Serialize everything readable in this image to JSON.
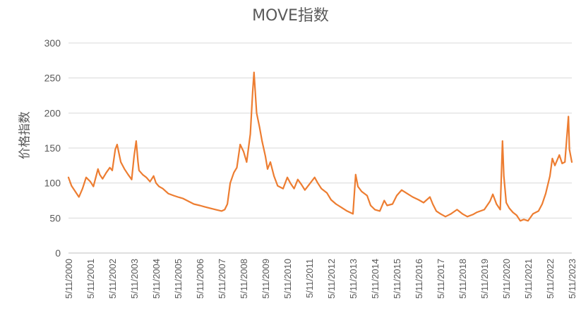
{
  "chart_data": {
    "type": "line",
    "title": "MOVE指数",
    "xlabel": "",
    "ylabel": "价格指数",
    "ylim": [
      0,
      300
    ],
    "yticks": [
      "0",
      "50",
      "100",
      "150",
      "200",
      "250",
      "300"
    ],
    "xticks": [
      "5/11/2000",
      "5/11/2001",
      "5/11/2002",
      "5/11/2003",
      "5/11/2004",
      "5/11/2005",
      "5/11/2006",
      "5/11/2007",
      "5/11/2008",
      "5/11/2009",
      "5/11/2010",
      "5/11/2011",
      "5/11/2012",
      "5/11/2013",
      "5/11/2014",
      "5/11/2015",
      "5/11/2016",
      "5/11/2017",
      "5/11/2018",
      "5/11/2019",
      "5/11/2020",
      "5/11/2021",
      "5/11/2022",
      "5/11/2023"
    ],
    "grid": true,
    "legend": "none",
    "line_color": "#ED7D31",
    "series": [
      {
        "name": "",
        "x": [
          "2000-05-11",
          "2000-07-01",
          "2000-09-01",
          "2000-11-01",
          "2001-01-01",
          "2001-03-01",
          "2001-05-11",
          "2001-07-01",
          "2001-09-15",
          "2001-10-15",
          "2001-12-01",
          "2002-02-01",
          "2002-04-01",
          "2002-05-11",
          "2002-07-01",
          "2002-08-01",
          "2002-10-01",
          "2002-12-01",
          "2003-02-01",
          "2003-04-01",
          "2003-05-11",
          "2003-06-15",
          "2003-07-15",
          "2003-08-01",
          "2003-10-01",
          "2003-12-01",
          "2004-02-01",
          "2004-04-01",
          "2004-05-11",
          "2004-07-01",
          "2004-09-01",
          "2004-12-01",
          "2005-03-01",
          "2005-05-11",
          "2005-08-01",
          "2005-11-01",
          "2006-02-01",
          "2006-05-11",
          "2006-08-01",
          "2006-11-01",
          "2007-02-01",
          "2007-05-11",
          "2007-07-01",
          "2007-08-15",
          "2007-10-01",
          "2007-12-01",
          "2008-01-20",
          "2008-03-15",
          "2008-05-11",
          "2008-07-01",
          "2008-09-01",
          "2008-10-10",
          "2008-11-01",
          "2008-12-15",
          "2009-02-01",
          "2009-03-15",
          "2009-05-11",
          "2009-06-15",
          "2009-08-01",
          "2009-10-01",
          "2009-12-01",
          "2010-03-01",
          "2010-05-11",
          "2010-07-01",
          "2010-09-01",
          "2010-11-01",
          "2011-01-01",
          "2011-03-01",
          "2011-05-11",
          "2011-08-10",
          "2011-10-01",
          "2011-12-01",
          "2012-03-01",
          "2012-05-11",
          "2012-08-01",
          "2012-11-01",
          "2013-02-01",
          "2013-05-11",
          "2013-06-25",
          "2013-08-01",
          "2013-10-01",
          "2014-01-01",
          "2014-03-01",
          "2014-05-11",
          "2014-08-01",
          "2014-10-15",
          "2014-12-01",
          "2015-03-01",
          "2015-05-11",
          "2015-08-01",
          "2015-11-01",
          "2016-02-01",
          "2016-05-11",
          "2016-08-01",
          "2016-11-15",
          "2017-01-01",
          "2017-03-01",
          "2017-05-11",
          "2017-08-01",
          "2017-11-01",
          "2018-02-10",
          "2018-05-11",
          "2018-08-01",
          "2018-11-01",
          "2019-01-01",
          "2019-05-11",
          "2019-08-15",
          "2019-10-01",
          "2019-12-01",
          "2020-02-01",
          "2020-03-10",
          "2020-04-01",
          "2020-05-11",
          "2020-07-01",
          "2020-09-01",
          "2020-11-01",
          "2021-01-01",
          "2021-03-01",
          "2021-05-11",
          "2021-08-01",
          "2021-11-01",
          "2022-01-01",
          "2022-03-01",
          "2022-05-11",
          "2022-06-20",
          "2022-08-01",
          "2022-10-15",
          "2022-12-01",
          "2023-01-15",
          "2023-03-15",
          "2023-04-01",
          "2023-05-11"
        ],
        "values": [
          108,
          96,
          88,
          80,
          92,
          108,
          102,
          95,
          120,
          112,
          106,
          115,
          122,
          118,
          148,
          155,
          130,
          120,
          112,
          105,
          138,
          160,
          130,
          118,
          112,
          108,
          102,
          110,
          100,
          95,
          92,
          85,
          82,
          80,
          78,
          74,
          70,
          68,
          66,
          64,
          62,
          60,
          62,
          70,
          100,
          115,
          122,
          155,
          145,
          130,
          170,
          230,
          258,
          200,
          180,
          160,
          138,
          120,
          130,
          110,
          96,
          92,
          108,
          100,
          92,
          105,
          98,
          90,
          98,
          108,
          100,
          92,
          86,
          76,
          70,
          65,
          60,
          56,
          112,
          95,
          88,
          82,
          68,
          62,
          60,
          75,
          68,
          70,
          82,
          90,
          85,
          80,
          76,
          72,
          80,
          70,
          60,
          56,
          52,
          56,
          62,
          56,
          52,
          55,
          58,
          62,
          74,
          84,
          70,
          62,
          160,
          110,
          72,
          64,
          58,
          54,
          46,
          48,
          46,
          56,
          60,
          70,
          85,
          110,
          135,
          125,
          140,
          128,
          130,
          195,
          148,
          130
        ]
      }
    ]
  }
}
